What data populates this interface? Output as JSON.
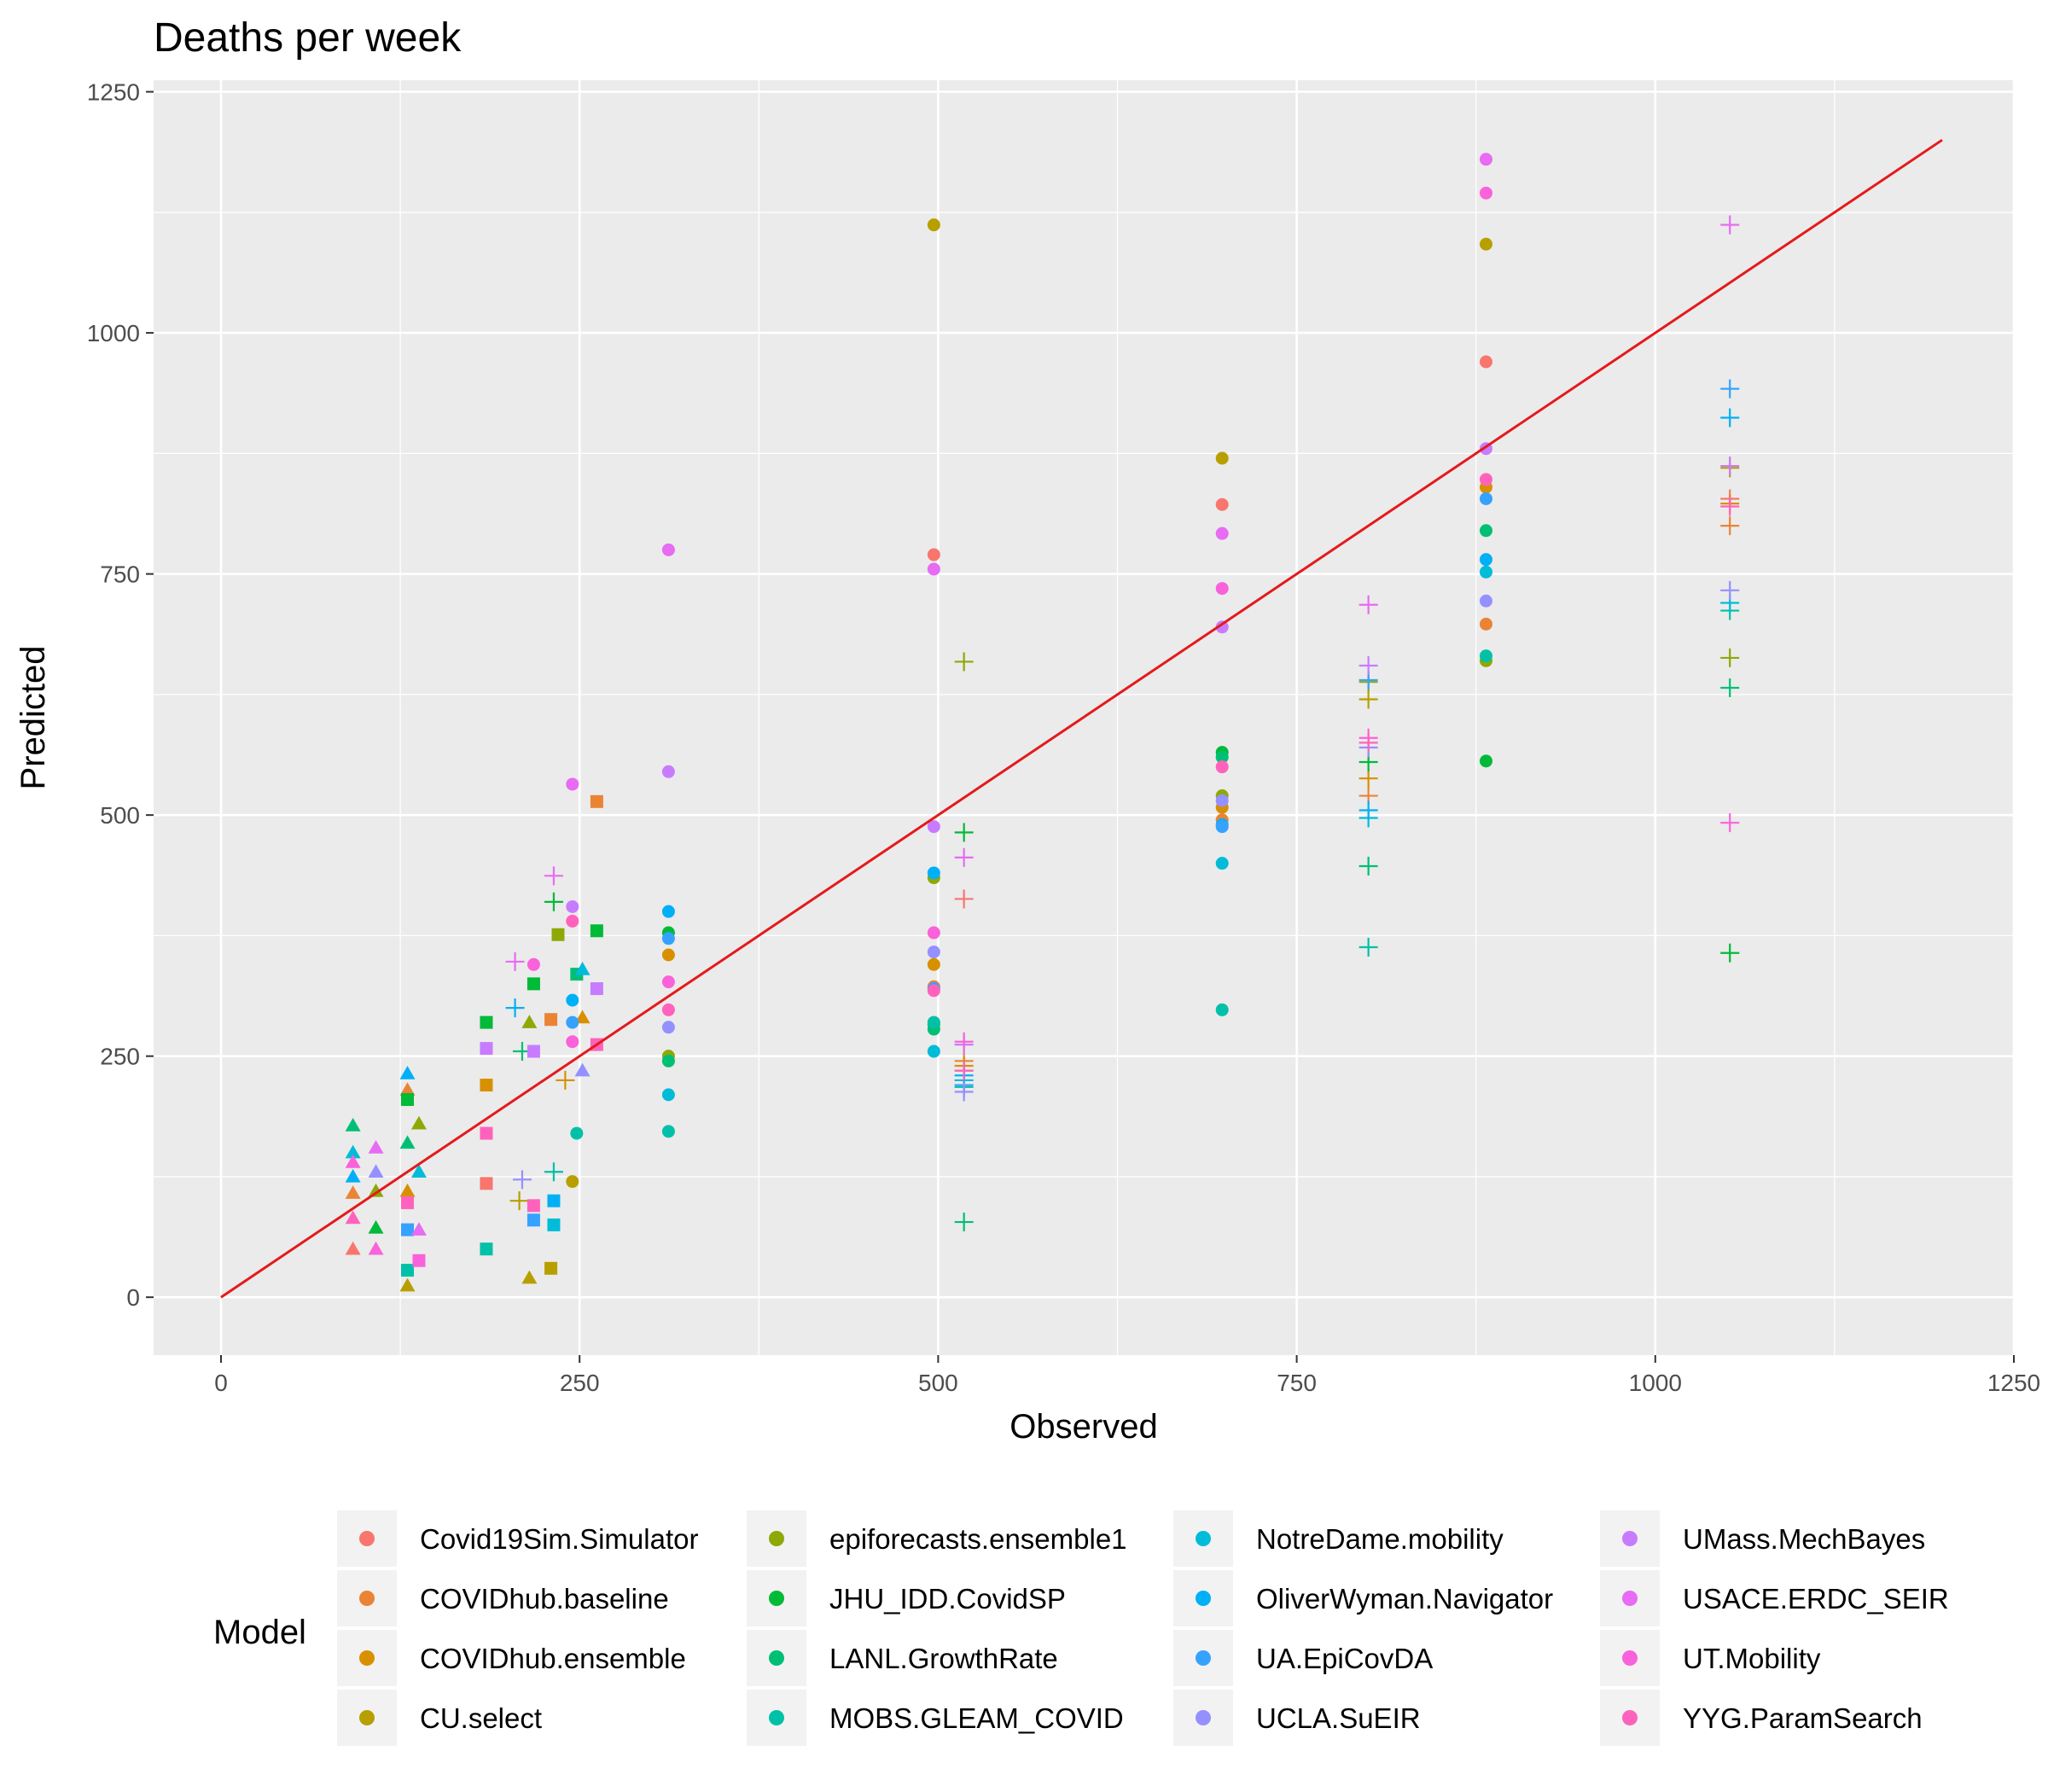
{
  "chart_data": {
    "type": "scatter",
    "title": "Deaths per week",
    "xlabel": "Observed",
    "ylabel": "Predicted",
    "xlim": [
      -47,
      1250
    ],
    "ylim": [
      -60,
      1262
    ],
    "x_ticks": [
      0,
      250,
      500,
      750,
      1000,
      1250
    ],
    "y_ticks": [
      0,
      250,
      500,
      750,
      1000,
      1250
    ],
    "x_tick_labels": [
      "0",
      "250",
      "500",
      "750",
      "1000",
      "1250"
    ],
    "y_tick_labels": [
      "0",
      "250",
      "500",
      "750",
      "1000",
      "1250"
    ],
    "grid": true,
    "panel_color": "#ebebeb",
    "grid_color": "#ffffff",
    "reference_line": {
      "x": [
        0,
        1200
      ],
      "y": [
        0,
        1200
      ],
      "color": "#e41a1c"
    },
    "legend": {
      "title": "Model",
      "position": "bottom"
    },
    "series": [
      {
        "name": "Covid19Sim.Simulator",
        "color": "#F8766D",
        "points": [
          [
            92,
            50,
            "tri"
          ],
          [
            185,
            118,
            "sq"
          ],
          [
            497,
            770,
            "dot"
          ],
          [
            518,
            413,
            "plus"
          ],
          [
            698,
            822,
            "dot"
          ],
          [
            882,
            970,
            "dot"
          ],
          [
            1052,
            828,
            "plus"
          ]
        ]
      },
      {
        "name": "COVIDhub.baseline",
        "color": "#EB8335",
        "points": [
          [
            92,
            108,
            "tri"
          ],
          [
            130,
            215,
            "tri"
          ],
          [
            230,
            288,
            "sq"
          ],
          [
            262,
            514,
            "sq"
          ],
          [
            497,
            322,
            "dot"
          ],
          [
            518,
            245,
            "plus"
          ],
          [
            698,
            495,
            "dot"
          ],
          [
            800,
            520,
            "plus"
          ],
          [
            882,
            698,
            "dot"
          ],
          [
            1052,
            800,
            "plus"
          ]
        ]
      },
      {
        "name": "COVIDhub.ensemble",
        "color": "#D89000",
        "points": [
          [
            130,
            110,
            "tri"
          ],
          [
            185,
            220,
            "sq"
          ],
          [
            240,
            225,
            "plus"
          ],
          [
            252,
            290,
            "tri"
          ],
          [
            312,
            355,
            "dot"
          ],
          [
            497,
            345,
            "dot"
          ],
          [
            518,
            240,
            "plus"
          ],
          [
            698,
            508,
            "dot"
          ],
          [
            800,
            538,
            "plus"
          ],
          [
            882,
            840,
            "dot"
          ],
          [
            1052,
            823,
            "plus"
          ]
        ]
      },
      {
        "name": "CU.select",
        "color": "#B79F00",
        "points": [
          [
            130,
            12,
            "tri"
          ],
          [
            215,
            20,
            "tri"
          ],
          [
            230,
            30,
            "sq"
          ],
          [
            245,
            120,
            "dot"
          ],
          [
            208,
            100,
            "plus"
          ],
          [
            497,
            1112,
            "dot"
          ],
          [
            518,
            235,
            "plus"
          ],
          [
            698,
            870,
            "dot"
          ],
          [
            800,
            620,
            "plus"
          ],
          [
            882,
            1092,
            "dot"
          ],
          [
            1052,
            860,
            "plus"
          ]
        ]
      },
      {
        "name": "epiforecasts.ensemble1",
        "color": "#8EA806",
        "points": [
          [
            108,
            110,
            "tri"
          ],
          [
            138,
            180,
            "tri"
          ],
          [
            215,
            285,
            "tri"
          ],
          [
            235,
            376,
            "sq"
          ],
          [
            312,
            250,
            "dot"
          ],
          [
            497,
            435,
            "dot"
          ],
          [
            518,
            659,
            "plus"
          ],
          [
            698,
            520,
            "dot"
          ],
          [
            800,
            638,
            "plus"
          ],
          [
            882,
            660,
            "dot"
          ],
          [
            1052,
            663,
            "plus"
          ]
        ]
      },
      {
        "name": "JHU_IDD.CovidSP",
        "color": "#00BA38",
        "points": [
          [
            108,
            72,
            "tri"
          ],
          [
            130,
            205,
            "sq"
          ],
          [
            185,
            285,
            "sq"
          ],
          [
            218,
            325,
            "sq"
          ],
          [
            232,
            410,
            "plus"
          ],
          [
            262,
            380,
            "sq"
          ],
          [
            312,
            378,
            "dot"
          ],
          [
            497,
            283,
            "dot"
          ],
          [
            518,
            482,
            "plus"
          ],
          [
            698,
            565,
            "dot"
          ],
          [
            800,
            555,
            "plus"
          ],
          [
            882,
            556,
            "dot"
          ],
          [
            1052,
            357,
            "plus"
          ]
        ]
      },
      {
        "name": "LANL.GrowthRate",
        "color": "#00BF74",
        "points": [
          [
            92,
            178,
            "tri"
          ],
          [
            130,
            160,
            "tri"
          ],
          [
            210,
            255,
            "plus"
          ],
          [
            248,
            335,
            "sq"
          ],
          [
            312,
            245,
            "dot"
          ],
          [
            497,
            278,
            "dot"
          ],
          [
            518,
            78,
            "plus"
          ],
          [
            698,
            560,
            "dot"
          ],
          [
            800,
            447,
            "plus"
          ],
          [
            882,
            795,
            "dot"
          ],
          [
            1052,
            632,
            "plus"
          ]
        ]
      },
      {
        "name": "MOBS.GLEAM_COVID",
        "color": "#00C1A7",
        "points": [
          [
            130,
            28,
            "sq"
          ],
          [
            185,
            50,
            "sq"
          ],
          [
            232,
            130,
            "plus"
          ],
          [
            248,
            170,
            "dot"
          ],
          [
            312,
            172,
            "dot"
          ],
          [
            497,
            285,
            "dot"
          ],
          [
            518,
            218,
            "plus"
          ],
          [
            698,
            298,
            "dot"
          ],
          [
            800,
            363,
            "plus"
          ],
          [
            882,
            665,
            "dot"
          ],
          [
            1052,
            712,
            "plus"
          ]
        ]
      },
      {
        "name": "NotreDame.mobility",
        "color": "#00BCD8",
        "points": [
          [
            92,
            150,
            "tri"
          ],
          [
            138,
            130,
            "tri"
          ],
          [
            232,
            75,
            "sq"
          ],
          [
            252,
            340,
            "tri"
          ],
          [
            312,
            210,
            "dot"
          ],
          [
            497,
            255,
            "dot"
          ],
          [
            518,
            225,
            "plus"
          ],
          [
            698,
            450,
            "dot"
          ],
          [
            800,
            497,
            "plus"
          ],
          [
            882,
            752,
            "dot"
          ],
          [
            1052,
            720,
            "plus"
          ]
        ]
      },
      {
        "name": "OliverWyman.Navigator",
        "color": "#00B0F6",
        "points": [
          [
            92,
            125,
            "tri"
          ],
          [
            130,
            232,
            "tri"
          ],
          [
            205,
            300,
            "plus"
          ],
          [
            232,
            100,
            "sq"
          ],
          [
            245,
            308,
            "dot"
          ],
          [
            312,
            400,
            "dot"
          ],
          [
            497,
            440,
            "dot"
          ],
          [
            518,
            230,
            "plus"
          ],
          [
            698,
            490,
            "dot"
          ],
          [
            800,
            505,
            "plus"
          ],
          [
            882,
            765,
            "dot"
          ],
          [
            1052,
            912,
            "plus"
          ]
        ]
      },
      {
        "name": "UA.EpiCovDA",
        "color": "#35A2FF",
        "points": [
          [
            130,
            70,
            "sq"
          ],
          [
            218,
            80,
            "sq"
          ],
          [
            245,
            285,
            "dot"
          ],
          [
            312,
            372,
            "dot"
          ],
          [
            497,
            320,
            "dot"
          ],
          [
            518,
            220,
            "plus"
          ],
          [
            698,
            488,
            "dot"
          ],
          [
            800,
            640,
            "plus"
          ],
          [
            882,
            828,
            "dot"
          ],
          [
            1052,
            942,
            "plus"
          ]
        ]
      },
      {
        "name": "UCLA.SuEIR",
        "color": "#9590FF",
        "points": [
          [
            108,
            130,
            "tri"
          ],
          [
            210,
            122,
            "plus"
          ],
          [
            252,
            235,
            "tri"
          ],
          [
            312,
            280,
            "dot"
          ],
          [
            497,
            358,
            "dot"
          ],
          [
            518,
            213,
            "plus"
          ],
          [
            698,
            515,
            "dot"
          ],
          [
            800,
            570,
            "plus"
          ],
          [
            882,
            722,
            "dot"
          ],
          [
            1052,
            733,
            "plus"
          ]
        ]
      },
      {
        "name": "UMass.MechBayes",
        "color": "#C77CFF",
        "points": [
          [
            185,
            258,
            "sq"
          ],
          [
            218,
            255,
            "sq"
          ],
          [
            245,
            405,
            "dot"
          ],
          [
            262,
            320,
            "sq"
          ],
          [
            312,
            545,
            "dot"
          ],
          [
            497,
            488,
            "dot"
          ],
          [
            518,
            262,
            "plus"
          ],
          [
            698,
            695,
            "dot"
          ],
          [
            800,
            655,
            "plus"
          ],
          [
            882,
            880,
            "dot"
          ],
          [
            1052,
            862,
            "plus"
          ]
        ]
      },
      {
        "name": "USACE.ERDC_SEIR",
        "color": "#E76BF3",
        "points": [
          [
            108,
            155,
            "tri"
          ],
          [
            138,
            70,
            "tri"
          ],
          [
            205,
            348,
            "plus"
          ],
          [
            232,
            437,
            "plus"
          ],
          [
            245,
            532,
            "dot"
          ],
          [
            312,
            775,
            "dot"
          ],
          [
            497,
            755,
            "dot"
          ],
          [
            518,
            456,
            "plus"
          ],
          [
            698,
            792,
            "dot"
          ],
          [
            800,
            718,
            "plus"
          ],
          [
            882,
            1180,
            "dot"
          ],
          [
            1052,
            1112,
            "plus"
          ]
        ]
      },
      {
        "name": "UT.Mobility",
        "color": "#FA62DB",
        "points": [
          [
            92,
            140,
            "tri"
          ],
          [
            108,
            50,
            "tri"
          ],
          [
            138,
            38,
            "sq"
          ],
          [
            218,
            345,
            "dot"
          ],
          [
            245,
            265,
            "dot"
          ],
          [
            312,
            327,
            "dot"
          ],
          [
            497,
            378,
            "dot"
          ],
          [
            518,
            265,
            "plus"
          ],
          [
            698,
            735,
            "dot"
          ],
          [
            800,
            580,
            "plus"
          ],
          [
            882,
            1145,
            "dot"
          ],
          [
            1052,
            492,
            "plus"
          ]
        ]
      },
      {
        "name": "YYG.ParamSearch",
        "color": "#FF62BC",
        "points": [
          [
            92,
            82,
            "tri"
          ],
          [
            130,
            98,
            "sq"
          ],
          [
            185,
            170,
            "sq"
          ],
          [
            218,
            95,
            "sq"
          ],
          [
            245,
            390,
            "dot"
          ],
          [
            262,
            262,
            "sq"
          ],
          [
            312,
            298,
            "dot"
          ],
          [
            497,
            318,
            "dot"
          ],
          [
            518,
            235,
            "plus"
          ],
          [
            698,
            550,
            "dot"
          ],
          [
            800,
            575,
            "plus"
          ],
          [
            882,
            848,
            "dot"
          ],
          [
            1052,
            820,
            "plus"
          ]
        ]
      }
    ]
  }
}
